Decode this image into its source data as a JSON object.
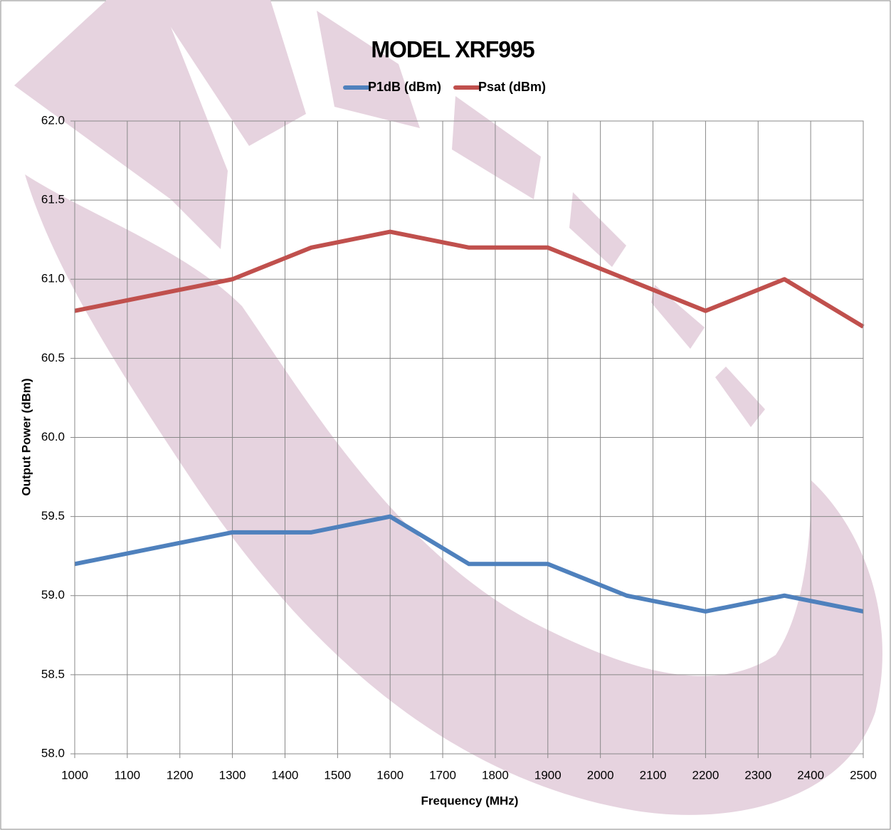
{
  "chart_data": {
    "type": "line",
    "title": "MODEL XRF995",
    "x_label": "Frequency (MHz)",
    "y_label": "Output Power (dBm)",
    "x": [
      1000,
      1300,
      1450,
      1600,
      1750,
      1900,
      2050,
      2200,
      2350,
      2500
    ],
    "series": [
      {
        "name": "P1dB (dBm)",
        "color": "#4f81bd",
        "values": [
          59.2,
          59.4,
          59.4,
          59.5,
          59.2,
          59.2,
          59.0,
          58.9,
          59.0,
          58.9
        ]
      },
      {
        "name": "Psat (dBm)",
        "color": "#c0504d",
        "values": [
          60.8,
          61.0,
          61.2,
          61.3,
          61.2,
          61.2,
          61.0,
          60.8,
          61.0,
          60.7
        ]
      }
    ],
    "xlim": [
      1000,
      2500
    ],
    "xticks": [
      1000,
      1100,
      1200,
      1300,
      1400,
      1500,
      1600,
      1700,
      1800,
      1900,
      2000,
      2100,
      2200,
      2300,
      2400,
      2500
    ],
    "ylim": [
      58,
      62
    ],
    "yticks": [
      {
        "value": 58,
        "label": "58.0"
      },
      {
        "value": 58.5,
        "label": "58.5"
      },
      {
        "value": 59,
        "label": "59.0"
      },
      {
        "value": 59.5,
        "label": "59.5"
      },
      {
        "value": 60,
        "label": "60.0"
      },
      {
        "value": 60.5,
        "label": "60.5"
      },
      {
        "value": 61,
        "label": "61.0"
      },
      {
        "value": 61.5,
        "label": "61.5"
      },
      {
        "value": 62,
        "label": "62.0"
      }
    ],
    "grid": true,
    "legend": "top"
  }
}
